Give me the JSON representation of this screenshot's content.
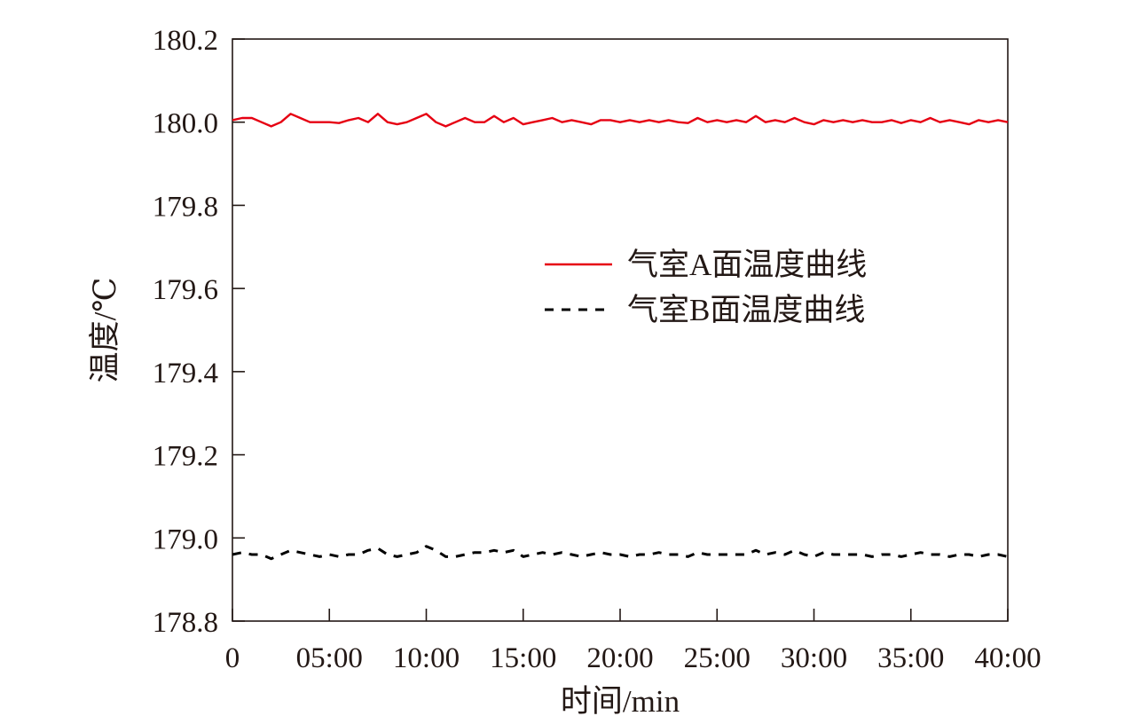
{
  "chart_data": {
    "type": "line",
    "title": "",
    "xlabel": "时间/min",
    "ylabel": "温度/℃",
    "x_ticks": [
      {
        "value": 0,
        "label": "0"
      },
      {
        "value": 5,
        "label": "05:00"
      },
      {
        "value": 10,
        "label": "10:00"
      },
      {
        "value": 15,
        "label": "15:00"
      },
      {
        "value": 20,
        "label": "20:00"
      },
      {
        "value": 25,
        "label": "25:00"
      },
      {
        "value": 30,
        "label": "30:00"
      },
      {
        "value": 35,
        "label": "35:00"
      },
      {
        "value": 40,
        "label": "40:00"
      }
    ],
    "y_ticks": [
      {
        "value": 178.8,
        "label": "178.8"
      },
      {
        "value": 179.0,
        "label": "179.0"
      },
      {
        "value": 179.2,
        "label": "179.2"
      },
      {
        "value": 179.4,
        "label": "179.4"
      },
      {
        "value": 179.6,
        "label": "179.6"
      },
      {
        "value": 179.8,
        "label": "179.8"
      },
      {
        "value": 180.0,
        "label": "180.0"
      },
      {
        "value": 180.2,
        "label": "180.2"
      }
    ],
    "xlim": [
      0,
      40
    ],
    "ylim": [
      178.8,
      180.2
    ],
    "grid": false,
    "legend_position": "middle-right",
    "series": [
      {
        "name": "气室A面温度曲线",
        "color": "#e60012",
        "style": "solid",
        "x": [
          0,
          0.5,
          1,
          1.5,
          2,
          2.5,
          3,
          3.5,
          4,
          4.5,
          5,
          5.5,
          6,
          6.5,
          7,
          7.5,
          8,
          8.5,
          9,
          9.5,
          10,
          10.5,
          11,
          11.5,
          12,
          12.5,
          13,
          13.5,
          14,
          14.5,
          15,
          15.5,
          16,
          16.5,
          17,
          17.5,
          18,
          18.5,
          19,
          19.5,
          20,
          20.5,
          21,
          21.5,
          22,
          22.5,
          23,
          23.5,
          24,
          24.5,
          25,
          25.5,
          26,
          26.5,
          27,
          27.5,
          28,
          28.5,
          29,
          29.5,
          30,
          30.5,
          31,
          31.5,
          32,
          32.5,
          33,
          33.5,
          34,
          34.5,
          35,
          35.5,
          36,
          36.5,
          37,
          37.5,
          38,
          38.5,
          39,
          39.5,
          40
        ],
        "y": [
          180.005,
          180.01,
          180.01,
          180.0,
          179.99,
          180.0,
          180.02,
          180.01,
          180.0,
          180.0,
          180.0,
          179.998,
          180.005,
          180.01,
          180.0,
          180.02,
          180.0,
          179.995,
          180.0,
          180.01,
          180.02,
          180.0,
          179.99,
          180.0,
          180.01,
          180.0,
          180.0,
          180.015,
          180.0,
          180.01,
          179.995,
          180.0,
          180.005,
          180.01,
          180.0,
          180.005,
          180.0,
          179.995,
          180.005,
          180.005,
          180.0,
          180.005,
          180.0,
          180.005,
          180.0,
          180.005,
          180.0,
          179.998,
          180.01,
          180.0,
          180.005,
          180.0,
          180.005,
          180.0,
          180.015,
          180.0,
          180.005,
          180.0,
          180.01,
          180.0,
          179.995,
          180.005,
          180.0,
          180.005,
          180.0,
          180.005,
          180.0,
          180.0,
          180.005,
          179.998,
          180.005,
          180.0,
          180.01,
          180.0,
          180.005,
          180.0,
          179.995,
          180.005,
          180.0,
          180.005,
          180.0
        ]
      },
      {
        "name": "气室B面温度曲线",
        "color": "#000000",
        "style": "dashed",
        "x": [
          0,
          0.5,
          1,
          1.5,
          2,
          2.5,
          3,
          3.5,
          4,
          4.5,
          5,
          5.5,
          6,
          6.5,
          7,
          7.5,
          8,
          8.5,
          9,
          9.5,
          10,
          10.5,
          11,
          11.5,
          12,
          12.5,
          13,
          13.5,
          14,
          14.5,
          15,
          15.5,
          16,
          16.5,
          17,
          17.5,
          18,
          18.5,
          19,
          19.5,
          20,
          20.5,
          21,
          21.5,
          22,
          22.5,
          23,
          23.5,
          24,
          24.5,
          25,
          25.5,
          26,
          26.5,
          27,
          27.5,
          28,
          28.5,
          29,
          29.5,
          30,
          30.5,
          31,
          31.5,
          32,
          32.5,
          33,
          33.5,
          34,
          34.5,
          35,
          35.5,
          36,
          36.5,
          37,
          37.5,
          38,
          38.5,
          39,
          39.5,
          40
        ],
        "y": [
          178.96,
          178.965,
          178.96,
          178.96,
          178.95,
          178.96,
          178.97,
          178.965,
          178.96,
          178.955,
          178.96,
          178.955,
          178.96,
          178.96,
          178.97,
          178.975,
          178.96,
          178.955,
          178.96,
          178.965,
          178.98,
          178.97,
          178.955,
          178.955,
          178.96,
          178.965,
          178.965,
          178.97,
          178.965,
          178.97,
          178.955,
          178.96,
          178.965,
          178.96,
          178.965,
          178.96,
          178.955,
          178.96,
          178.965,
          178.96,
          178.96,
          178.955,
          178.96,
          178.96,
          178.965,
          178.96,
          178.96,
          178.955,
          178.965,
          178.96,
          178.96,
          178.96,
          178.96,
          178.96,
          178.97,
          178.96,
          178.965,
          178.96,
          178.97,
          178.96,
          178.955,
          178.965,
          178.96,
          178.96,
          178.96,
          178.96,
          178.955,
          178.96,
          178.96,
          178.955,
          178.96,
          178.965,
          178.96,
          178.96,
          178.955,
          178.96,
          178.96,
          178.955,
          178.96,
          178.96,
          178.955
        ]
      }
    ]
  }
}
